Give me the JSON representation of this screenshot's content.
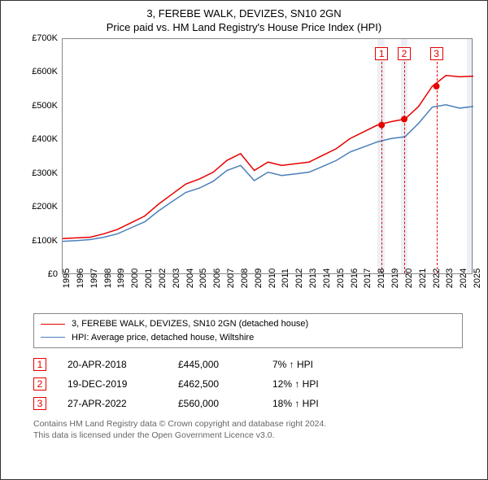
{
  "title": "3, FEREBE WALK, DEVIZES, SN10 2GN",
  "subtitle": "Price paid vs. HM Land Registry's House Price Index (HPI)",
  "chart": {
    "type": "line",
    "background_color": "#ffffff",
    "plot_border_color": "#888888",
    "ylim": [
      0,
      700000
    ],
    "ytick_step": 100000,
    "ytick_labels": [
      "£0",
      "£100K",
      "£200K",
      "£300K",
      "£400K",
      "£500K",
      "£600K",
      "£700K"
    ],
    "xlim": [
      1995,
      2025
    ],
    "xtick_years": [
      1995,
      1996,
      1997,
      1998,
      1999,
      2000,
      2001,
      2002,
      2003,
      2004,
      2005,
      2006,
      2007,
      2008,
      2009,
      2010,
      2011,
      2012,
      2013,
      2014,
      2015,
      2016,
      2017,
      2018,
      2019,
      2020,
      2021,
      2022,
      2023,
      2024,
      2025
    ],
    "shaded_bands": [
      {
        "from": 2018.0,
        "to": 2018.5
      },
      {
        "from": 2019.7,
        "to": 2020.2
      },
      {
        "from": 2024.5,
        "to": 2025.0
      }
    ],
    "series": [
      {
        "id": "property",
        "label": "3, FEREBE WALK, DEVIZES, SN10 2GN (detached house)",
        "color": "#e60000",
        "line_width": 1.5,
        "points": [
          [
            1995,
            108000
          ],
          [
            1996,
            110000
          ],
          [
            1997,
            112000
          ],
          [
            1998,
            122000
          ],
          [
            1999,
            135000
          ],
          [
            2000,
            155000
          ],
          [
            2001,
            175000
          ],
          [
            2002,
            210000
          ],
          [
            2003,
            240000
          ],
          [
            2004,
            270000
          ],
          [
            2005,
            285000
          ],
          [
            2006,
            305000
          ],
          [
            2007,
            340000
          ],
          [
            2008,
            360000
          ],
          [
            2009,
            310000
          ],
          [
            2010,
            335000
          ],
          [
            2011,
            325000
          ],
          [
            2012,
            330000
          ],
          [
            2013,
            335000
          ],
          [
            2014,
            355000
          ],
          [
            2015,
            375000
          ],
          [
            2016,
            405000
          ],
          [
            2017,
            425000
          ],
          [
            2018,
            445000
          ],
          [
            2019,
            455000
          ],
          [
            2020,
            462500
          ],
          [
            2021,
            500000
          ],
          [
            2022,
            560000
          ],
          [
            2023,
            592000
          ],
          [
            2024,
            588000
          ],
          [
            2025,
            590000
          ]
        ],
        "markers": [
          {
            "x": 2018.3,
            "y": 445000
          },
          {
            "x": 2019.95,
            "y": 462500
          },
          {
            "x": 2022.3,
            "y": 560000
          }
        ],
        "marker_color": "#e60000",
        "marker_radius": 4
      },
      {
        "id": "hpi",
        "label": "HPI: Average price, detached house, Wiltshire",
        "color": "#4a7fb8",
        "line_width": 1.5,
        "points": [
          [
            1995,
            100000
          ],
          [
            1996,
            102000
          ],
          [
            1997,
            105000
          ],
          [
            1998,
            112000
          ],
          [
            1999,
            122000
          ],
          [
            2000,
            140000
          ],
          [
            2001,
            158000
          ],
          [
            2002,
            190000
          ],
          [
            2003,
            218000
          ],
          [
            2004,
            245000
          ],
          [
            2005,
            258000
          ],
          [
            2006,
            278000
          ],
          [
            2007,
            310000
          ],
          [
            2008,
            325000
          ],
          [
            2009,
            280000
          ],
          [
            2010,
            305000
          ],
          [
            2011,
            295000
          ],
          [
            2012,
            300000
          ],
          [
            2013,
            305000
          ],
          [
            2014,
            322000
          ],
          [
            2015,
            340000
          ],
          [
            2016,
            365000
          ],
          [
            2017,
            380000
          ],
          [
            2018,
            395000
          ],
          [
            2019,
            405000
          ],
          [
            2020,
            410000
          ],
          [
            2021,
            450000
          ],
          [
            2022,
            498000
          ],
          [
            2023,
            505000
          ],
          [
            2024,
            495000
          ],
          [
            2025,
            500000
          ]
        ]
      }
    ],
    "plot_markers": [
      {
        "id": 1,
        "label": "1",
        "x": 2018.3,
        "color": "#e60000"
      },
      {
        "id": 2,
        "label": "2",
        "x": 2019.95,
        "color": "#e60000"
      },
      {
        "id": 3,
        "label": "3",
        "x": 2022.3,
        "color": "#e60000"
      }
    ]
  },
  "legend": {
    "items": [
      {
        "color": "#e60000",
        "label": "3, FEREBE WALK, DEVIZES, SN10 2GN (detached house)"
      },
      {
        "color": "#4a7fb8",
        "label": "HPI: Average price, detached house, Wiltshire"
      }
    ]
  },
  "transactions": [
    {
      "marker": "1",
      "marker_color": "#e60000",
      "date": "20-APR-2018",
      "price": "£445,000",
      "delta": "7% ↑ HPI"
    },
    {
      "marker": "2",
      "marker_color": "#e60000",
      "date": "19-DEC-2019",
      "price": "£462,500",
      "delta": "12% ↑ HPI"
    },
    {
      "marker": "3",
      "marker_color": "#e60000",
      "date": "27-APR-2022",
      "price": "£560,000",
      "delta": "18% ↑ HPI"
    }
  ],
  "footer_line1": "Contains HM Land Registry data © Crown copyright and database right 2024.",
  "footer_line2": "This data is licensed under the Open Government Licence v3.0."
}
